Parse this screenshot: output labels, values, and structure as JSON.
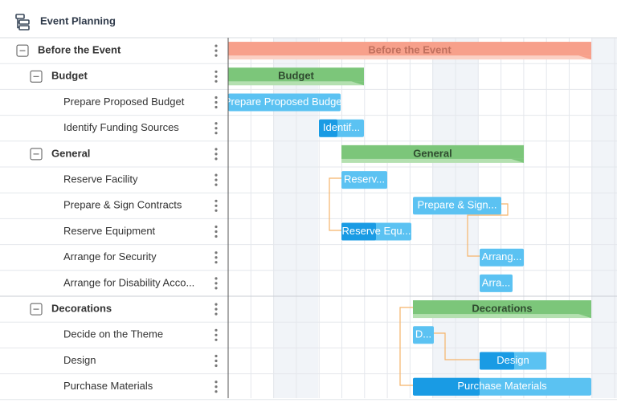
{
  "header": {
    "title": "Event Planning"
  },
  "rows": [
    {
      "label": "Before the Event"
    },
    {
      "label": "Budget"
    },
    {
      "label": "Prepare Proposed Budget"
    },
    {
      "label": "Identify Funding Sources",
      "bar_text": "Identif..."
    },
    {
      "label": "General"
    },
    {
      "label": "Reserve Facility",
      "bar_text": "Reserv..."
    },
    {
      "label": "Prepare & Sign Contracts",
      "bar_text": "Prepare & Sign..."
    },
    {
      "label": "Reserve Equipment",
      "bar_text": "Reserve Equ..."
    },
    {
      "label": "Arrange for Security",
      "bar_text": "Arrang..."
    },
    {
      "label": "Arrange for Disability Acco...",
      "bar_text": "Arra..."
    },
    {
      "label": "Decorations"
    },
    {
      "label": "Decide on the Theme",
      "bar_text": "D..."
    },
    {
      "label": "Design"
    },
    {
      "label": "Purchase Materials"
    }
  ]
}
